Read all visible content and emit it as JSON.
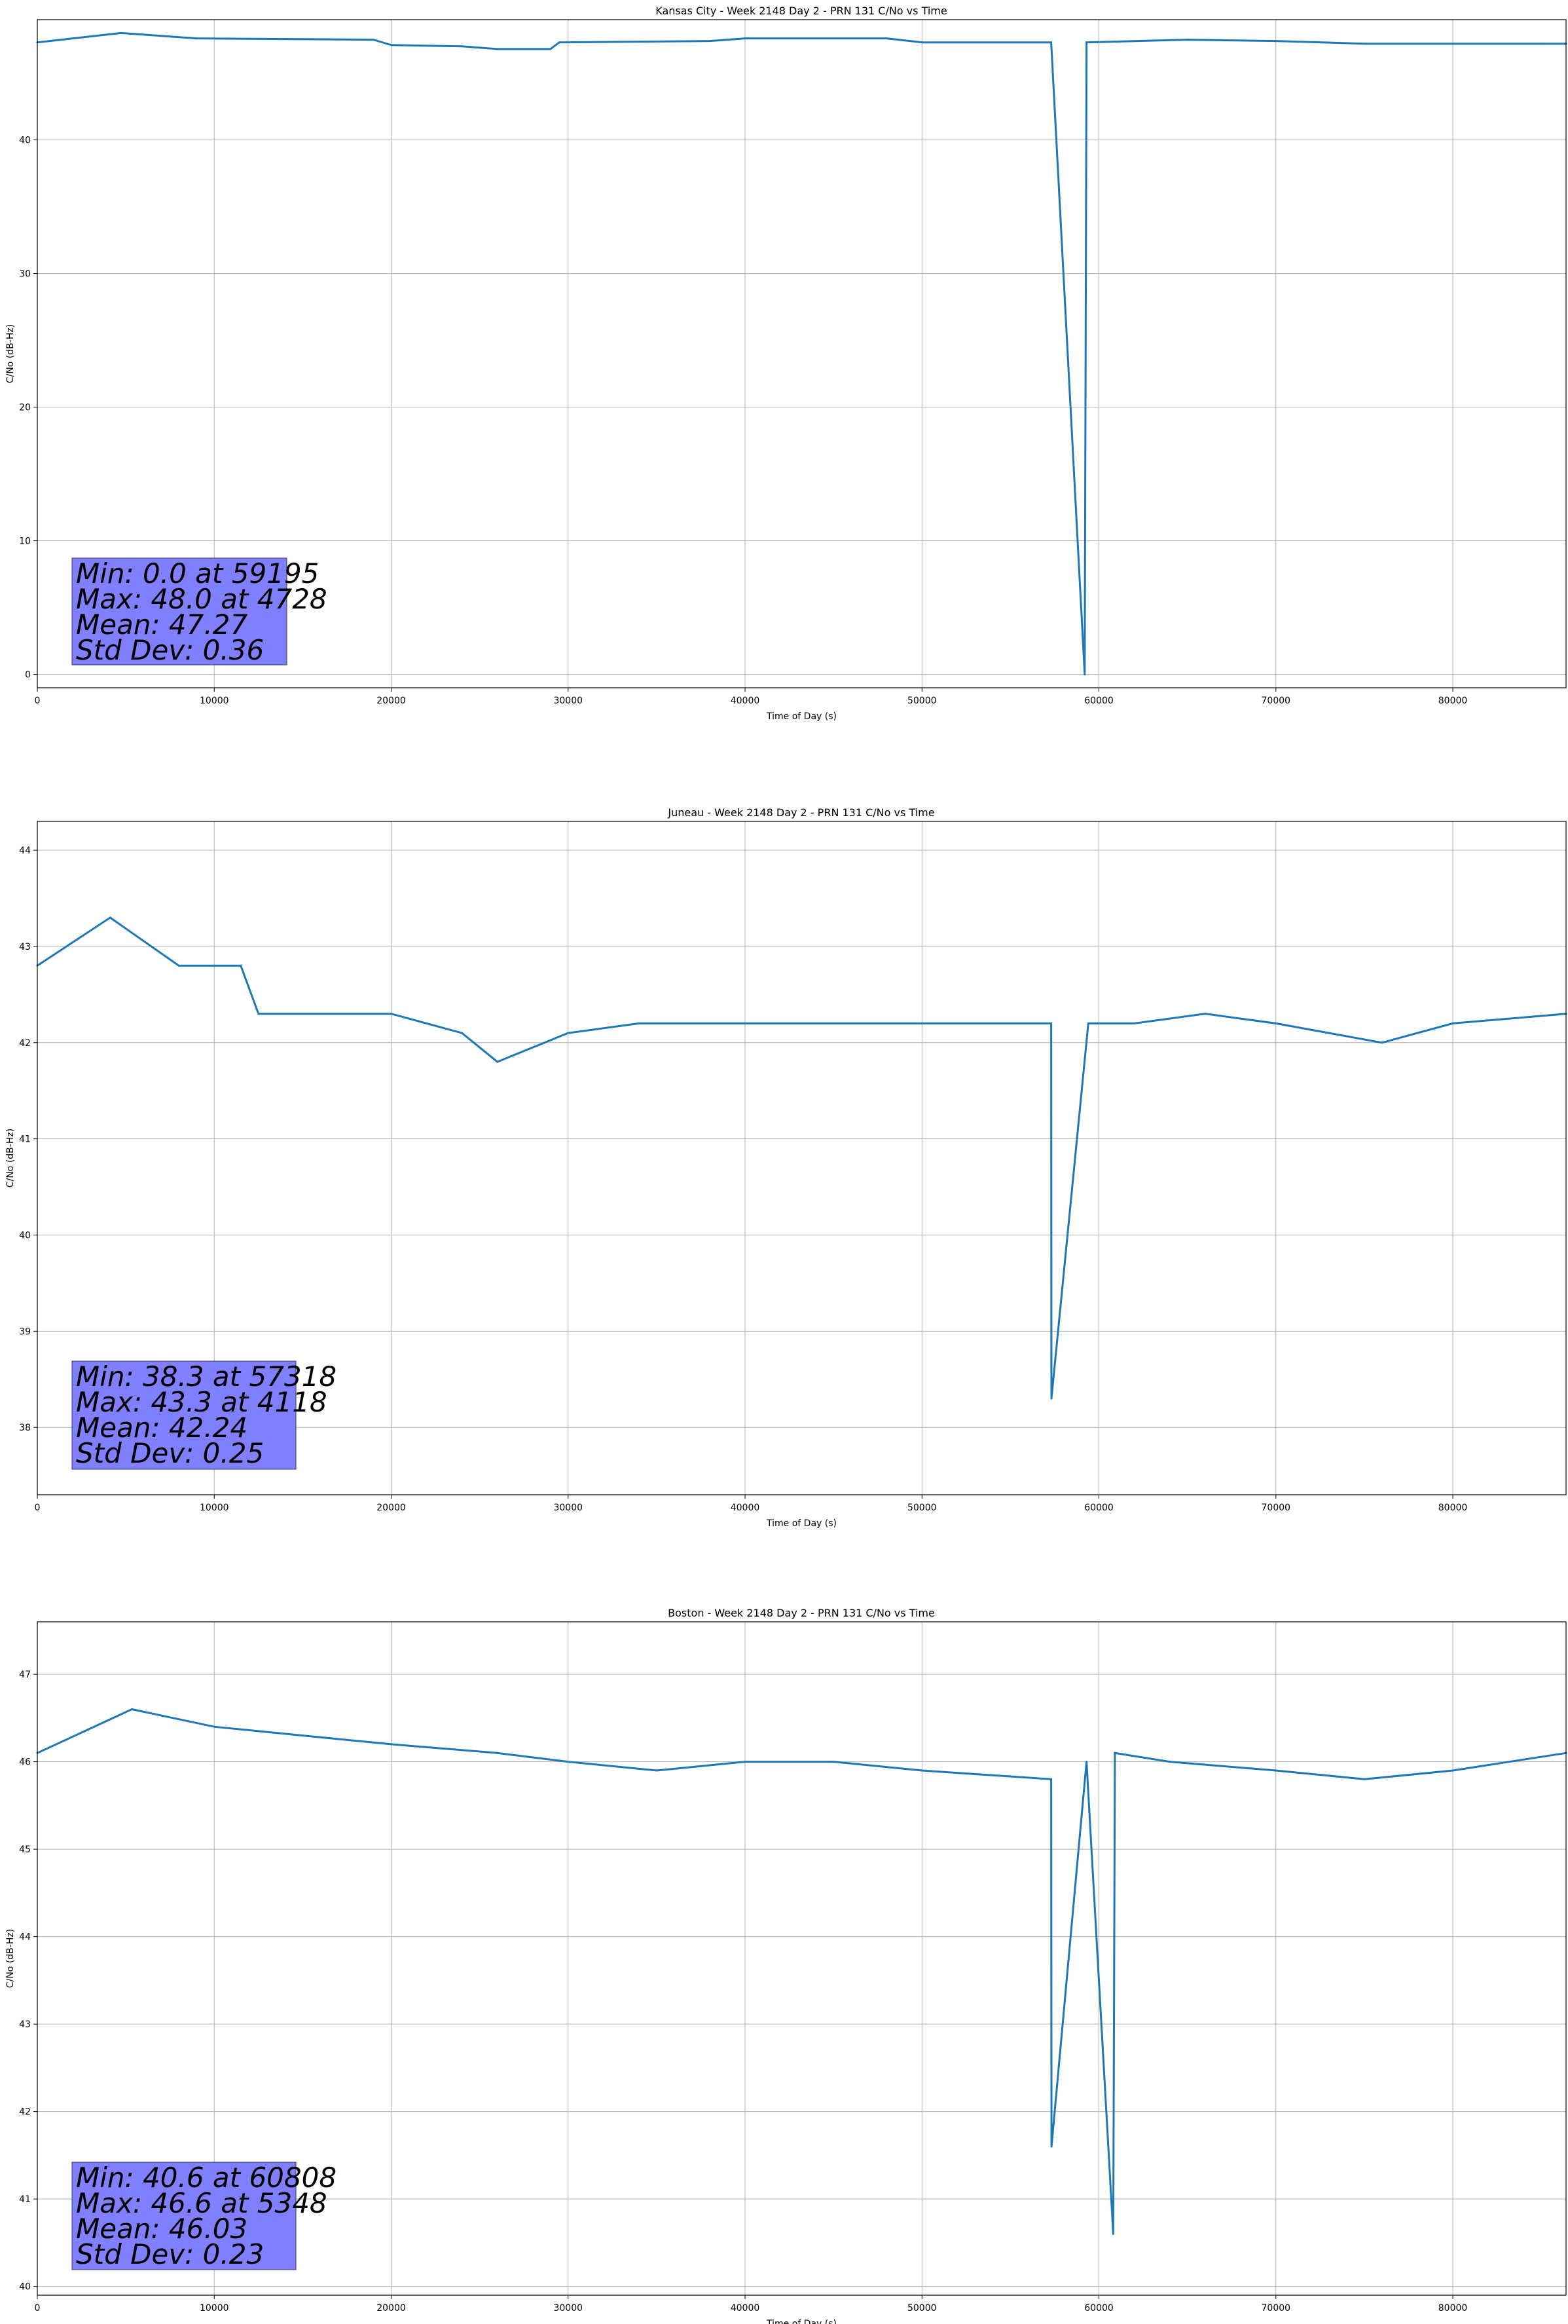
{
  "chart_data": [
    {
      "type": "line",
      "title": "Kansas City - Week 2148 Day 2 - PRN 131 C/No vs Time",
      "xlabel": "Time of Day (s)",
      "ylabel": "C/No (dB-Hz)",
      "xlim": [
        0,
        86400
      ],
      "ylim": [
        -1,
        49
      ],
      "xticks": [
        0,
        10000,
        20000,
        30000,
        40000,
        50000,
        60000,
        70000,
        80000
      ],
      "yticks": [
        0,
        10,
        20,
        30,
        40
      ],
      "grid": true,
      "color": "#1f77b4",
      "series": [
        {
          "x": [
            0,
            4728,
            9000,
            19000,
            20000,
            24000,
            26000,
            29000,
            29500,
            38000,
            40000,
            48000,
            50000,
            57300,
            59195,
            59300,
            65000,
            70000,
            75000,
            80000,
            85000,
            86400
          ],
          "y": [
            47.3,
            48.0,
            47.6,
            47.5,
            47.1,
            47.0,
            46.8,
            46.8,
            47.3,
            47.4,
            47.6,
            47.6,
            47.3,
            47.3,
            0.0,
            47.3,
            47.5,
            47.4,
            47.2,
            47.2,
            47.2,
            47.2
          ]
        }
      ],
      "stats": [
        "Min: 0.0 at 59195",
        "Max: 48.0 at 4728",
        "Mean: 47.27",
        "Std Dev: 0.36"
      ]
    },
    {
      "type": "line",
      "title": "Juneau - Week 2148 Day 2 - PRN 131 C/No vs Time",
      "xlabel": "Time of Day (s)",
      "ylabel": "C/No (dB-Hz)",
      "xlim": [
        0,
        86400
      ],
      "ylim": [
        37.3,
        44.3
      ],
      "xticks": [
        0,
        10000,
        20000,
        30000,
        40000,
        50000,
        60000,
        70000,
        80000
      ],
      "yticks": [
        38,
        39,
        40,
        41,
        42,
        43,
        44
      ],
      "grid": true,
      "color": "#1f77b4",
      "series": [
        {
          "x": [
            0,
            4118,
            8000,
            11500,
            12500,
            20000,
            24000,
            26000,
            30000,
            34000,
            40000,
            50000,
            57300,
            57318,
            59400,
            62000,
            66000,
            70000,
            76000,
            80000,
            86400
          ],
          "y": [
            42.8,
            43.3,
            42.8,
            42.8,
            42.3,
            42.3,
            42.1,
            41.8,
            42.1,
            42.2,
            42.2,
            42.2,
            42.2,
            38.3,
            42.2,
            42.2,
            42.3,
            42.2,
            42.0,
            42.2,
            42.3
          ]
        }
      ],
      "stats": [
        "Min: 38.3 at 57318",
        "Max: 43.3 at 4118",
        "Mean: 42.24",
        "Std Dev: 0.25"
      ]
    },
    {
      "type": "line",
      "title": "Boston - Week 2148 Day 2 - PRN 131 C/No vs Time",
      "xlabel": "Time of Day (s)",
      "ylabel": "C/No (dB-Hz)",
      "xlim": [
        0,
        86400
      ],
      "ylim": [
        39.9,
        47.6
      ],
      "xticks": [
        0,
        10000,
        20000,
        30000,
        40000,
        50000,
        60000,
        70000,
        80000
      ],
      "yticks": [
        40,
        41,
        42,
        43,
        44,
        45,
        46,
        47
      ],
      "grid": true,
      "color": "#1f77b4",
      "series": [
        {
          "x": [
            0,
            5348,
            10000,
            15000,
            20000,
            26000,
            30000,
            35000,
            40000,
            45000,
            50000,
            57300,
            57320,
            59300,
            60808,
            60900,
            64000,
            70000,
            75000,
            80000,
            86400
          ],
          "y": [
            46.1,
            46.6,
            46.4,
            46.3,
            46.2,
            46.1,
            46.0,
            45.9,
            46.0,
            46.0,
            45.9,
            45.8,
            41.6,
            46.0,
            40.6,
            46.1,
            46.0,
            45.9,
            45.8,
            45.9,
            46.1
          ]
        }
      ],
      "stats": [
        "Min: 40.6 at 60808",
        "Max: 46.6 at 5348",
        "Mean: 46.03",
        "Std Dev: 0.23"
      ]
    }
  ]
}
